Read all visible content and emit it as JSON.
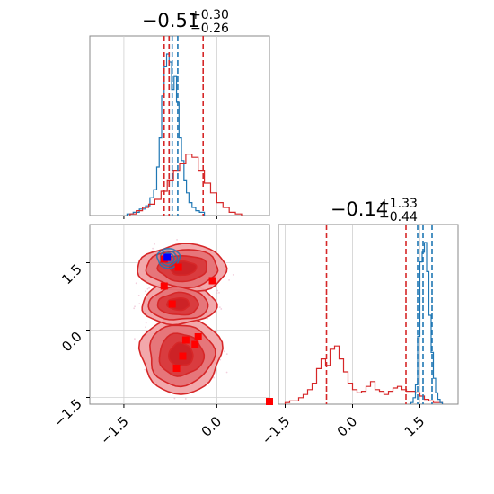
{
  "chart_data": [
    {
      "panel": "marginal-x",
      "type": "histogram",
      "title": {
        "median": "−0.51",
        "plus": "+0.30",
        "minus": "−0.26"
      },
      "xlim": [
        -2.05,
        0.85
      ],
      "grid": true,
      "series": [
        {
          "name": "",
          "color": "#1f77b4",
          "bins": [
            -1.45,
            -1.35,
            -1.25,
            -1.15,
            -1.08,
            -1.02,
            -0.97,
            -0.93,
            -0.89,
            -0.85,
            -0.81,
            -0.77,
            -0.73,
            -0.69,
            -0.65,
            -0.61,
            -0.57,
            -0.53,
            -0.49,
            -0.45,
            -0.4,
            -0.34,
            -0.28,
            -0.2
          ],
          "counts": [
            0.01,
            0.02,
            0.04,
            0.06,
            0.11,
            0.16,
            0.3,
            0.48,
            0.74,
            0.92,
            1.0,
            0.95,
            0.78,
            0.86,
            0.7,
            0.48,
            0.34,
            0.22,
            0.14,
            0.08,
            0.05,
            0.03,
            0.02
          ],
          "quantiles": [
            -0.77,
            -0.72,
            -0.63
          ]
        },
        {
          "name": "",
          "color": "#d62728",
          "bins": [
            -1.4,
            -1.3,
            -1.2,
            -1.1,
            -1.0,
            -0.9,
            -0.8,
            -0.7,
            -0.6,
            -0.5,
            -0.4,
            -0.3,
            -0.2,
            -0.1,
            0.0,
            0.1,
            0.2,
            0.3,
            0.4
          ],
          "counts": [
            0.01,
            0.03,
            0.05,
            0.07,
            0.1,
            0.15,
            0.22,
            0.28,
            0.32,
            0.38,
            0.36,
            0.28,
            0.2,
            0.14,
            0.08,
            0.05,
            0.02,
            0.01
          ],
          "quantiles": [
            -0.85,
            -0.77,
            -0.22
          ]
        }
      ],
      "xticks": [
        "",
        "",
        ""
      ]
    },
    {
      "panel": "joint",
      "type": "contour",
      "xlim": [
        -2.05,
        0.85
      ],
      "ylim": [
        -1.65,
        2.35
      ],
      "xticks": [
        -1.5,
        0.0
      ],
      "yticks": [
        -1.5,
        0.0,
        1.5
      ],
      "xtick_labels": [
        "−1.5",
        "0.0"
      ],
      "ytick_labels": [
        "−1.5",
        "0.0",
        "1.5"
      ],
      "grid": true,
      "red_region_lobes": [
        {
          "cx": -0.58,
          "cy": -0.55,
          "rx": 0.65,
          "ry": 0.85
        },
        {
          "cx": -0.62,
          "cy": 0.58,
          "rx": 0.6,
          "ry": 0.45
        },
        {
          "cx": -0.55,
          "cy": 1.38,
          "rx": 0.72,
          "ry": 0.52
        }
      ],
      "blue_region": {
        "cx": -0.78,
        "cy": 1.6,
        "rx": 0.18,
        "ry": 0.22
      },
      "red_markers": [
        [
          -0.85,
          1.58
        ],
        [
          -0.62,
          1.4
        ],
        [
          -0.85,
          0.98
        ],
        [
          -0.72,
          0.58
        ],
        [
          -0.07,
          1.1
        ],
        [
          -0.3,
          -0.15
        ],
        [
          -0.5,
          -0.22
        ],
        [
          -0.35,
          -0.32
        ],
        [
          -0.55,
          -0.58
        ],
        [
          -0.65,
          -0.85
        ],
        [
          1.35,
          -1.62
        ]
      ],
      "blue_markers": [
        [
          -0.8,
          1.62
        ]
      ]
    },
    {
      "panel": "marginal-y",
      "type": "histogram",
      "title": {
        "median": "−0.14",
        "plus": "+1.33",
        "minus": "−0.44"
      },
      "xlim": [
        -1.65,
        2.35
      ],
      "grid": true,
      "xticks": [
        -1.5,
        0.0,
        1.5
      ],
      "xtick_labels": [
        "−1.5",
        "0.0",
        "1.5"
      ],
      "series": [
        {
          "name": "",
          "color": "#d62728",
          "bins": [
            -1.5,
            -1.4,
            -1.3,
            -1.2,
            -1.1,
            -1.0,
            -0.9,
            -0.8,
            -0.7,
            -0.6,
            -0.5,
            -0.4,
            -0.3,
            -0.2,
            -0.1,
            0.0,
            0.1,
            0.2,
            0.3,
            0.4,
            0.5,
            0.6,
            0.7,
            0.8,
            0.9,
            1.0,
            1.1,
            1.2,
            1.3,
            1.4,
            1.5,
            1.6,
            1.7,
            1.8,
            1.9,
            2.0
          ],
          "counts": [
            0.01,
            0.02,
            0.02,
            0.04,
            0.06,
            0.09,
            0.13,
            0.22,
            0.28,
            0.24,
            0.34,
            0.36,
            0.28,
            0.2,
            0.13,
            0.09,
            0.07,
            0.08,
            0.11,
            0.14,
            0.09,
            0.08,
            0.06,
            0.08,
            0.1,
            0.11,
            0.09,
            0.08,
            0.08,
            0.07,
            0.05,
            0.03,
            0.02,
            0.01,
            0.01
          ],
          "quantiles": [
            -0.58,
            1.19
          ]
        },
        {
          "name": "",
          "color": "#1f77b4",
          "bins": [
            1.3,
            1.35,
            1.4,
            1.45,
            1.5,
            1.55,
            1.6,
            1.65,
            1.7,
            1.75,
            1.8,
            1.85,
            1.9,
            1.95,
            2.0
          ],
          "counts": [
            0.01,
            0.04,
            0.12,
            0.42,
            0.88,
            0.94,
            1.0,
            0.82,
            0.55,
            0.32,
            0.16,
            0.07,
            0.03,
            0.01
          ],
          "quantiles": [
            1.45,
            1.57,
            1.77
          ]
        }
      ]
    }
  ]
}
